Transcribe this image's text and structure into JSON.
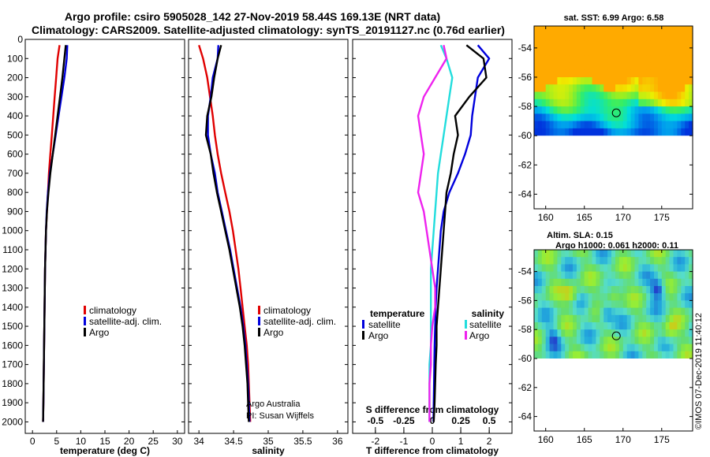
{
  "header": {
    "line1": "Argo profile: csiro 5905028_142 27-Nov-2019 58.44S 169.13E (NRT data)",
    "line2": "Climatology: CARS2009. Satellite-adjusted climatology: synTS_20191127.nc (0.76d earlier)"
  },
  "colors": {
    "climatology": "#e00000",
    "satellite": "#0000dd",
    "argo": "#000000",
    "sat_salinity": "#22dddd",
    "argo_salinity": "#ee22ee"
  },
  "depth_ticks": [
    "0",
    "100",
    "200",
    "300",
    "400",
    "500",
    "600",
    "700",
    "800",
    "900",
    "1000",
    "1100",
    "1200",
    "1300",
    "1400",
    "1500",
    "1600",
    "1700",
    "1800",
    "1900",
    "2000"
  ],
  "credits": {
    "line1": "Argo Australia",
    "line2": "PI: Susan Wijffels"
  },
  "stamp": "©IMOS 07-Dec-2019 11:40:12",
  "chart_data": [
    {
      "type": "line",
      "xlabel": "temperature (deg C)",
      "ylabel": "",
      "xlim": [
        -1.5,
        31.5
      ],
      "ylim": [
        2060,
        0
      ],
      "xticks": [
        "0",
        "5",
        "10",
        "15",
        "20",
        "25",
        "30"
      ],
      "legend": [
        "climatology",
        "satellite-adj. clim.",
        "Argo"
      ],
      "series": [
        {
          "name": "climatology",
          "color_key": "climatology",
          "x": [
            5.6,
            5.2,
            4.9,
            4.6,
            4.3,
            4.0,
            3.7,
            3.4,
            3.2,
            3.0,
            2.8,
            2.7,
            2.6,
            2.55,
            2.5,
            2.45,
            2.4,
            2.35,
            2.3,
            2.25,
            2.2
          ],
          "y": [
            30,
            100,
            200,
            300,
            400,
            500,
            600,
            700,
            800,
            900,
            1000,
            1100,
            1200,
            1300,
            1400,
            1500,
            1600,
            1700,
            1800,
            1900,
            2000
          ]
        },
        {
          "name": "satellite-adj. clim.",
          "color_key": "satellite",
          "x": [
            7.2,
            7.1,
            6.6,
            6.0,
            5.4,
            4.8,
            4.2,
            3.6,
            3.2,
            2.95,
            2.8,
            2.7,
            2.6,
            2.55,
            2.5,
            2.45,
            2.4,
            2.35,
            2.3,
            2.25,
            2.2
          ],
          "y": [
            30,
            100,
            200,
            300,
            400,
            500,
            600,
            700,
            800,
            900,
            1000,
            1100,
            1200,
            1300,
            1400,
            1500,
            1600,
            1700,
            1800,
            1900,
            2000
          ]
        },
        {
          "name": "Argo",
          "color_key": "argo",
          "x": [
            6.9,
            6.6,
            6.2,
            5.7,
            5.2,
            4.7,
            4.2,
            3.7,
            3.3,
            3.0,
            2.8,
            2.7,
            2.6,
            2.55,
            2.5,
            2.45,
            2.4,
            2.35,
            2.3,
            2.25,
            2.2
          ],
          "y": [
            30,
            100,
            200,
            300,
            400,
            500,
            600,
            700,
            800,
            900,
            1000,
            1100,
            1200,
            1300,
            1400,
            1500,
            1600,
            1700,
            1800,
            1900,
            2000
          ]
        }
      ]
    },
    {
      "type": "line",
      "xlabel": "salinity",
      "ylabel": "",
      "xlim": [
        33.85,
        36.15
      ],
      "ylim": [
        2060,
        0
      ],
      "xticks": [
        "34",
        "34.5",
        "35",
        "35.5",
        "36"
      ],
      "legend": [
        "climatology",
        "satellite-adj. clim.",
        "Argo"
      ],
      "series": [
        {
          "name": "climatology",
          "color_key": "climatology",
          "x": [
            34.0,
            34.06,
            34.12,
            34.16,
            34.2,
            34.23,
            34.27,
            34.32,
            34.38,
            34.44,
            34.49,
            34.53,
            34.57,
            34.6,
            34.63,
            34.66,
            34.69,
            34.71,
            34.72,
            34.73,
            34.74
          ],
          "y": [
            30,
            100,
            200,
            300,
            400,
            500,
            600,
            700,
            800,
            900,
            1000,
            1100,
            1200,
            1300,
            1400,
            1500,
            1600,
            1700,
            1800,
            1900,
            2000
          ]
        },
        {
          "name": "satellite-adj. clim.",
          "color_key": "satellite",
          "x": [
            34.28,
            34.27,
            34.2,
            34.17,
            34.13,
            34.13,
            34.17,
            34.23,
            34.27,
            34.33,
            34.39,
            34.45,
            34.5,
            34.55,
            34.6,
            34.64,
            34.67,
            34.69,
            34.71,
            34.72,
            34.73
          ],
          "y": [
            30,
            100,
            200,
            300,
            400,
            500,
            600,
            700,
            800,
            900,
            1000,
            1100,
            1200,
            1300,
            1400,
            1500,
            1600,
            1700,
            1800,
            1900,
            2000
          ]
        },
        {
          "name": "Argo",
          "color_key": "argo",
          "x": [
            34.32,
            34.27,
            34.22,
            34.18,
            34.12,
            34.1,
            34.17,
            34.21,
            34.26,
            34.32,
            34.38,
            34.44,
            34.49,
            34.54,
            34.59,
            34.63,
            34.66,
            34.68,
            34.7,
            34.71,
            34.72
          ],
          "y": [
            30,
            100,
            200,
            300,
            400,
            500,
            600,
            700,
            800,
            900,
            1000,
            1100,
            1200,
            1300,
            1400,
            1500,
            1600,
            1700,
            1800,
            1900,
            2000
          ]
        }
      ]
    },
    {
      "type": "line",
      "xlabel": "T difference from climatology",
      "ylabel": "",
      "xlim": [
        -2.8,
        2.8
      ],
      "ylim": [
        2060,
        0
      ],
      "xticks": [
        "-2",
        "-1",
        "0",
        "1",
        "2"
      ],
      "top_label": "S difference from climatology",
      "top_ticks": [
        "-0.5",
        "-0.25",
        "0",
        "0.25",
        "0.5"
      ],
      "legend_left_title": "temperature",
      "legend_left": [
        "satellite",
        "Argo"
      ],
      "legend_right_title": "salinity",
      "legend_right": [
        "satellite",
        "Argo"
      ],
      "series": [
        {
          "name": "satellite",
          "color_key": "satellite",
          "x": [
            1.6,
            2.0,
            1.6,
            1.5,
            1.4,
            1.35,
            1.15,
            0.9,
            0.6,
            0.4,
            0.3,
            0.25,
            0.2,
            0.15,
            0.12,
            0.1,
            0.08,
            0.07,
            0.06,
            0.05,
            0.04
          ],
          "y": [
            30,
            100,
            200,
            300,
            400,
            500,
            600,
            700,
            800,
            900,
            1000,
            1100,
            1200,
            1300,
            1400,
            1500,
            1600,
            1700,
            1800,
            1900,
            2000
          ]
        },
        {
          "name": "Argo",
          "color_key": "argo",
          "x": [
            1.2,
            1.8,
            1.9,
            1.3,
            0.8,
            0.9,
            0.75,
            0.65,
            0.5,
            0.45,
            0.4,
            0.35,
            0.3,
            0.25,
            0.2,
            0.15,
            0.15,
            0.12,
            0.1,
            0.08,
            0.05
          ],
          "y": [
            30,
            100,
            200,
            300,
            400,
            500,
            600,
            700,
            800,
            900,
            1000,
            1100,
            1200,
            1300,
            1400,
            1500,
            1600,
            1700,
            1800,
            1900,
            2000
          ]
        },
        {
          "name": "satellite",
          "color_key": "sat_salinity",
          "x": [
            0.3,
            0.5,
            0.7,
            0.6,
            0.5,
            0.4,
            0.3,
            0.2,
            0.15,
            0.1,
            0.05,
            0.0,
            -0.05,
            -0.05,
            -0.05,
            -0.05,
            -0.05,
            -0.1,
            -0.1,
            -0.1,
            -0.1
          ],
          "y": [
            30,
            100,
            200,
            300,
            400,
            500,
            600,
            700,
            800,
            900,
            1000,
            1100,
            1200,
            1300,
            1400,
            1500,
            1600,
            1700,
            1800,
            1900,
            2000
          ]
        },
        {
          "name": "Argo",
          "color_key": "argo_salinity",
          "x": [
            0.4,
            0.5,
            0.1,
            -0.3,
            -0.5,
            -0.4,
            -0.3,
            -0.4,
            -0.5,
            -0.3,
            -0.2,
            -0.1,
            0.0,
            0.1,
            0.1,
            0.0,
            -0.05,
            -0.05,
            -0.1,
            -0.1,
            -0.1
          ],
          "y": [
            30,
            100,
            200,
            300,
            400,
            500,
            600,
            700,
            800,
            900,
            1000,
            1100,
            1200,
            1300,
            1400,
            1500,
            1600,
            1700,
            1800,
            1900,
            2000
          ]
        }
      ]
    },
    {
      "type": "heatmap",
      "title": "sat. SST: 6.99 Argo: 6.58",
      "xlim": [
        158.5,
        179
      ],
      "ylim": [
        -65,
        -52.5
      ],
      "xticks": [
        "160",
        "165",
        "170",
        "175"
      ],
      "yticks": [
        "-54",
        "-56",
        "-58",
        "-60",
        "-62",
        "-64"
      ],
      "data_lat_min": -60,
      "marker": {
        "lon": 169.13,
        "lat": -58.44
      },
      "palette": [
        "#0033dd",
        "#0099ee",
        "#00dddd",
        "#33ee66",
        "#99ee22",
        "#eeee00",
        "#ffaa00"
      ]
    },
    {
      "type": "heatmap",
      "title": "Altim. SLA: 0.15",
      "subtitle": "Argo h1000: 0.061 h2000: 0.11",
      "xlim": [
        158.5,
        179
      ],
      "ylim": [
        -65,
        -52.5
      ],
      "xticks": [
        "160",
        "165",
        "170",
        "175"
      ],
      "yticks": [
        "-54",
        "-56",
        "-58",
        "-60",
        "-62",
        "-64"
      ],
      "data_lat_min": -60,
      "marker": {
        "lon": 169.13,
        "lat": -58.44
      },
      "palette": [
        "#2244cc",
        "#22aadd",
        "#55ddcc",
        "#66dd66",
        "#99ee33",
        "#ffaa00"
      ]
    }
  ]
}
